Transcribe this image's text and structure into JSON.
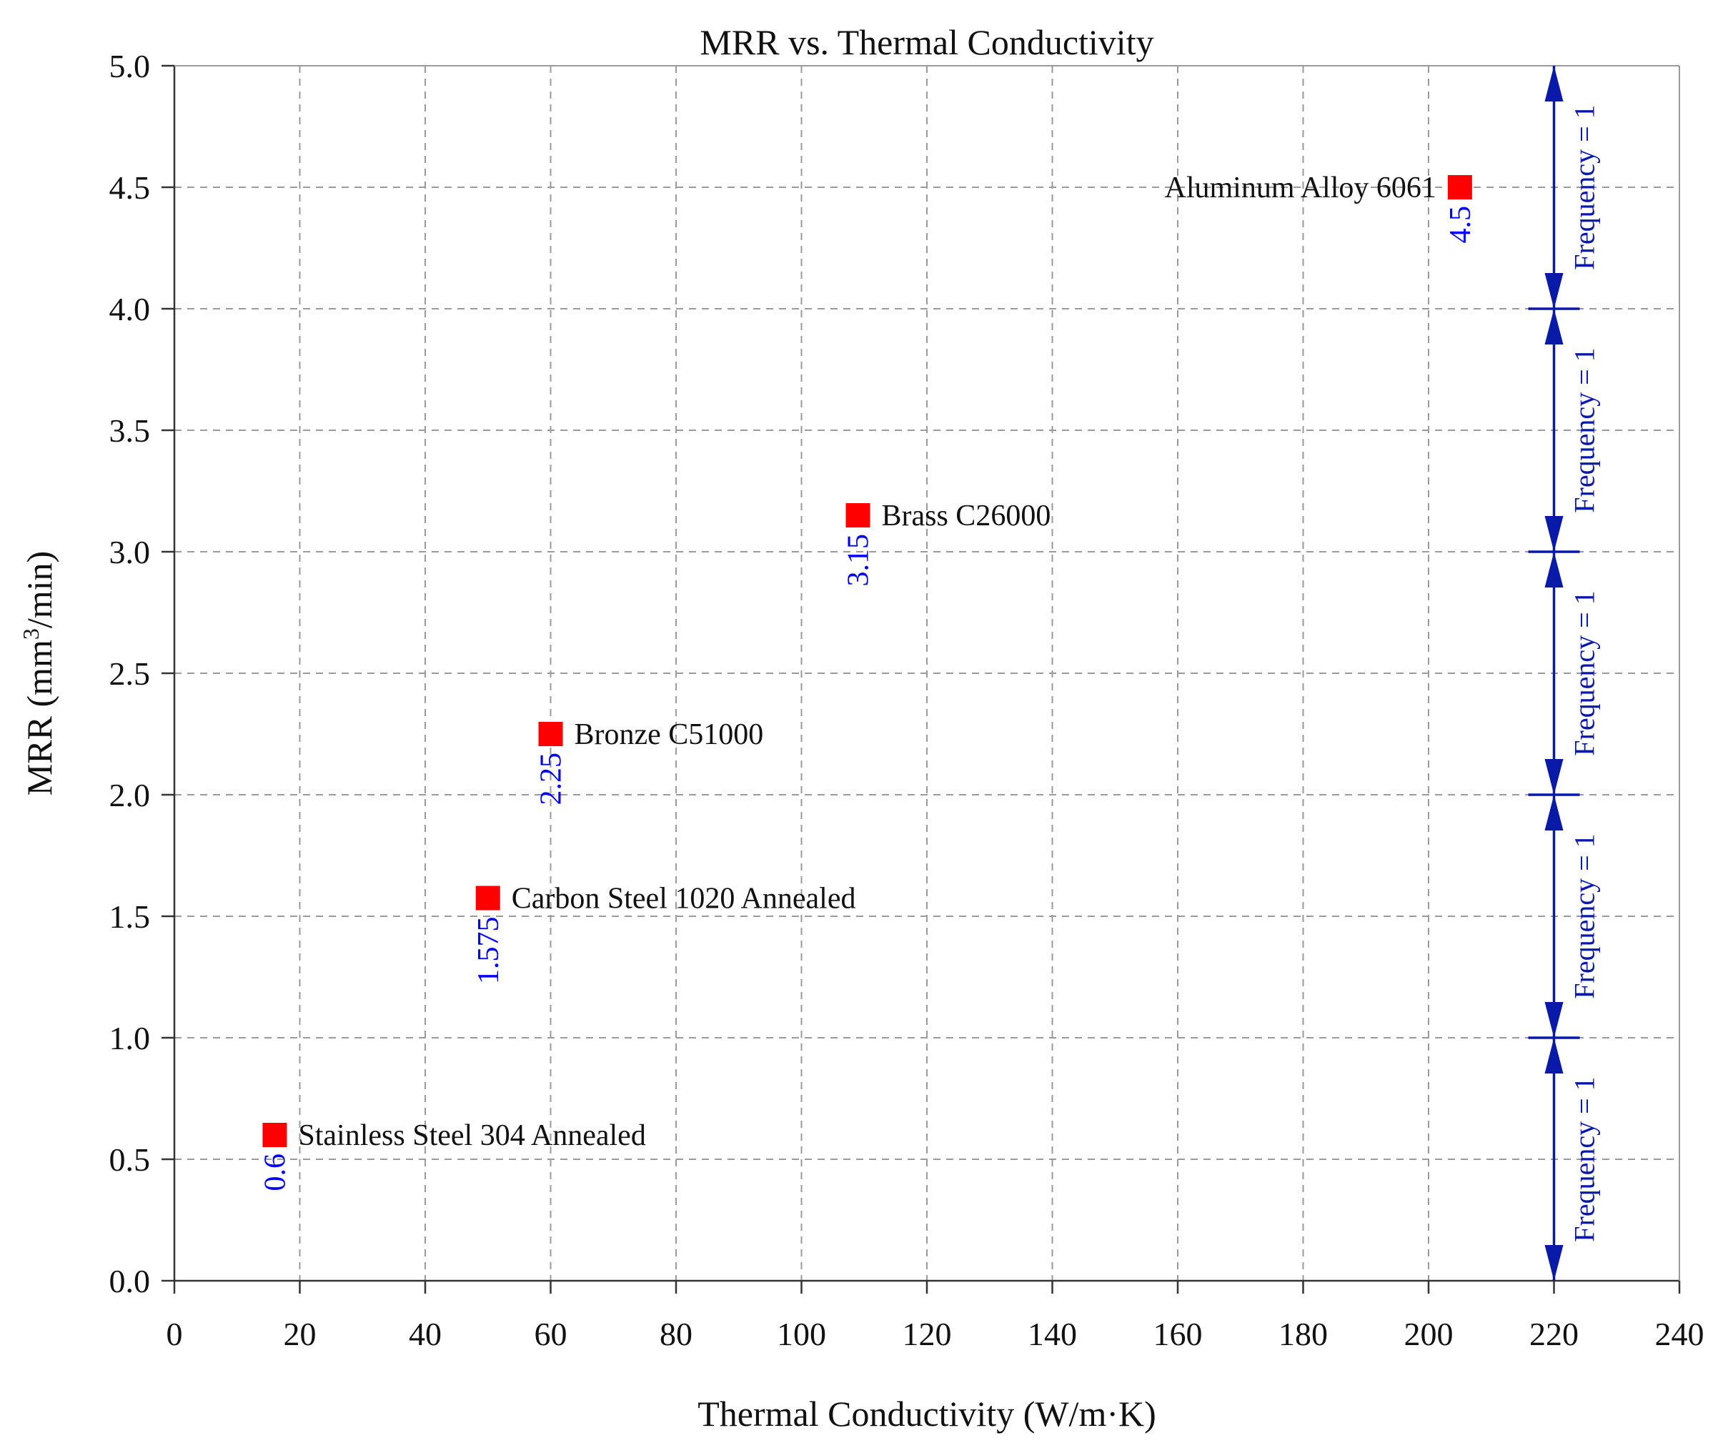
{
  "chart_data": {
    "type": "scatter",
    "title": "MRR vs. Thermal Conductivity",
    "xlabel": "Thermal Conductivity (W/m·K)",
    "ylabel": {
      "prefix": "MRR (mm",
      "superscript": "3",
      "suffix": "/min)"
    },
    "xlim": [
      0,
      240
    ],
    "ylim": [
      0,
      5
    ],
    "xticks": [
      0,
      20,
      40,
      60,
      80,
      100,
      120,
      140,
      160,
      180,
      200,
      220,
      240
    ],
    "yticks": [
      "0.0",
      "0.5",
      "1.0",
      "1.5",
      "2.0",
      "2.5",
      "3.0",
      "3.5",
      "4.0",
      "4.5",
      "5.0"
    ],
    "grid": true,
    "points": [
      {
        "name": "Stainless Steel 304 Annealed",
        "x": 16,
        "y": 0.6,
        "value_label": "0.6",
        "label_side": "right"
      },
      {
        "name": "Carbon Steel 1020 Annealed",
        "x": 50,
        "y": 1.575,
        "value_label": "1.575",
        "label_side": "right"
      },
      {
        "name": "Bronze C51000",
        "x": 60,
        "y": 2.25,
        "value_label": "2.25",
        "label_side": "right"
      },
      {
        "name": "Brass C26000",
        "x": 109,
        "y": 3.15,
        "value_label": "3.15",
        "label_side": "right"
      },
      {
        "name": "Aluminum Alloy 6061",
        "x": 205,
        "y": 4.5,
        "value_label": "4.5",
        "label_side": "left"
      }
    ],
    "frequency_bins": {
      "x": 220,
      "bins": [
        {
          "from": 0,
          "to": 1,
          "label": "Frequency = 1"
        },
        {
          "from": 1,
          "to": 2,
          "label": "Frequency = 1"
        },
        {
          "from": 2,
          "to": 3,
          "label": "Frequency = 1"
        },
        {
          "from": 3,
          "to": 4,
          "label": "Frequency = 1"
        },
        {
          "from": 4,
          "to": 5,
          "label": "Frequency = 1"
        }
      ]
    },
    "colors": {
      "marker": "#ff0000",
      "value_label": "#0000ff",
      "frequency": "#0a1aa8",
      "grid": "#9a9a9a"
    }
  }
}
